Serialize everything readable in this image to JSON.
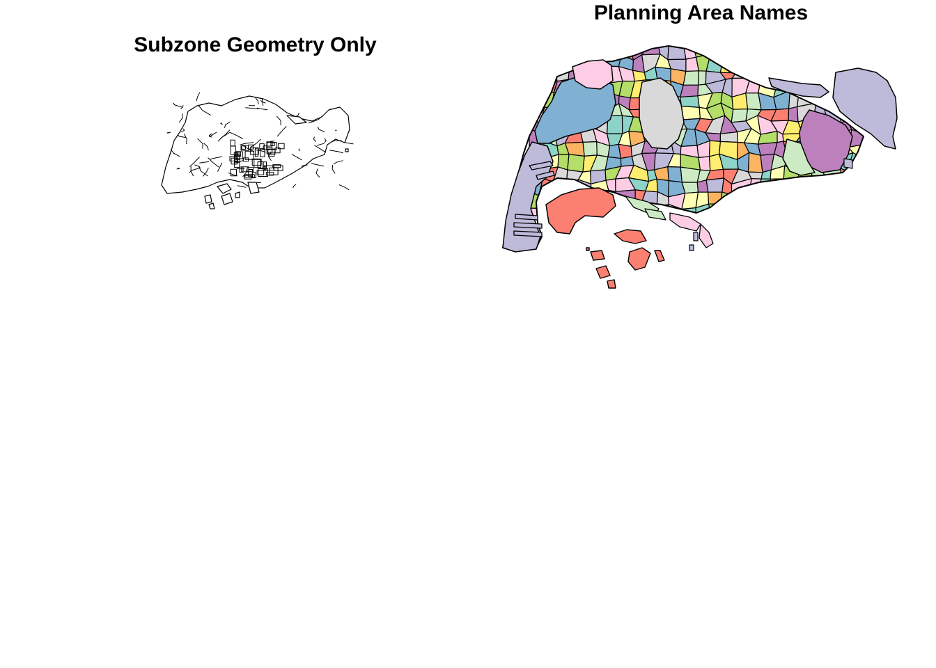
{
  "panels": [
    {
      "title": "Subzone Geometry Only"
    },
    {
      "title": "Planning Area Names"
    }
  ],
  "palette": [
    "#8DD3C7",
    "#FFFFB3",
    "#BEBADA",
    "#FB8072",
    "#80B1D3",
    "#FDB462",
    "#B3DE69",
    "#FCCDE5",
    "#D9D9D9",
    "#BC80BD",
    "#CCEBC5",
    "#FFED6F"
  ],
  "stroke_color": "#000000",
  "left_fill": "#ffffff"
}
